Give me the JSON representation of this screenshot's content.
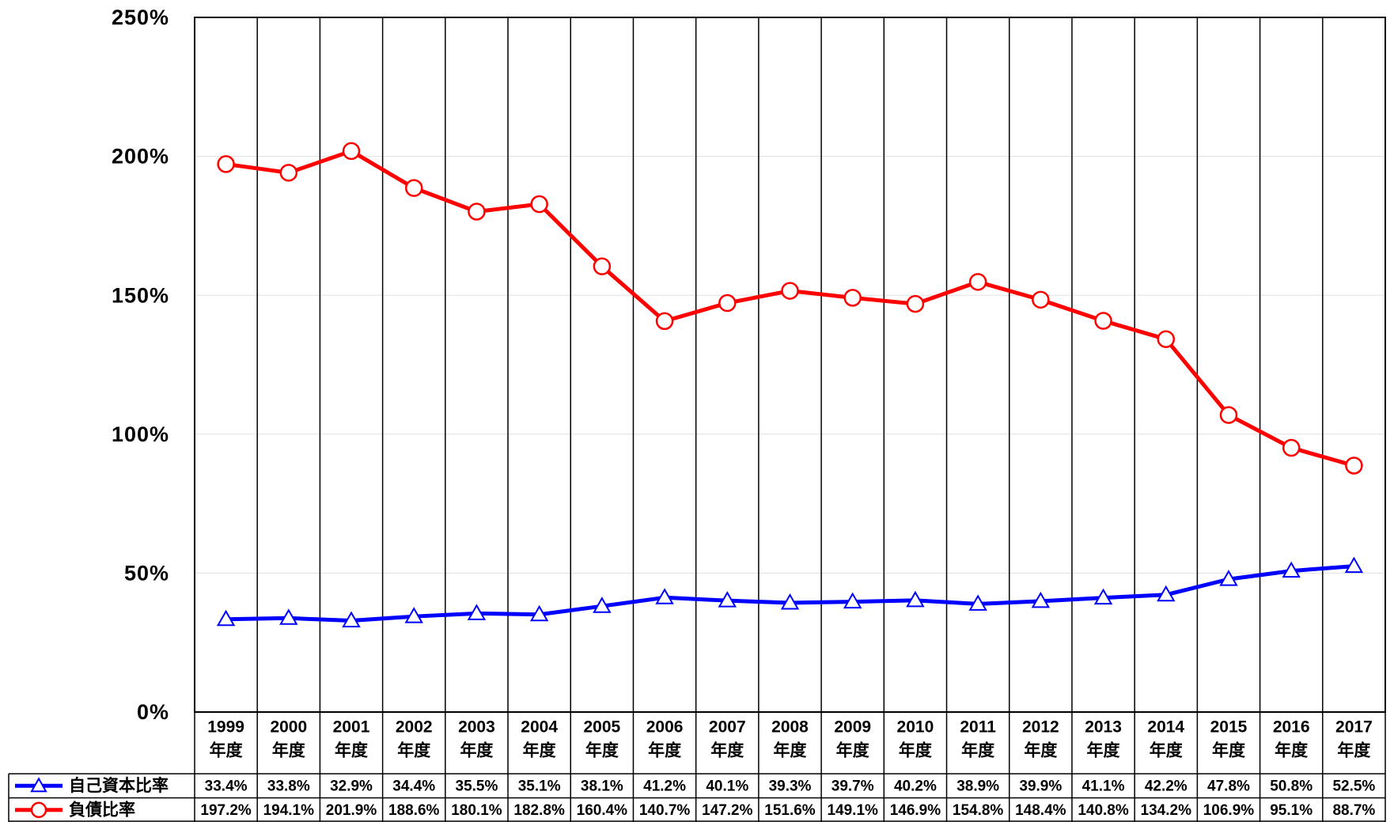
{
  "chart_data": {
    "type": "line",
    "categories": [
      "1999",
      "2000",
      "2001",
      "2002",
      "2003",
      "2004",
      "2005",
      "2006",
      "2007",
      "2008",
      "2009",
      "2010",
      "2011",
      "2012",
      "2013",
      "2014",
      "2015",
      "2016",
      "2017"
    ],
    "category_suffix": "年度",
    "series": [
      {
        "name": "自己資本比率",
        "color": "#0000ff",
        "marker": "triangle",
        "values": [
          33.4,
          33.8,
          32.9,
          34.4,
          35.5,
          35.1,
          38.1,
          41.2,
          40.1,
          39.3,
          39.7,
          40.2,
          38.9,
          39.9,
          41.1,
          42.2,
          47.8,
          50.8,
          52.5
        ],
        "value_labels": [
          "33.4%",
          "33.8%",
          "32.9%",
          "34.4%",
          "35.5%",
          "35.1%",
          "38.1%",
          "41.2%",
          "40.1%",
          "39.3%",
          "39.7%",
          "40.2%",
          "38.9%",
          "39.9%",
          "41.1%",
          "42.2%",
          "47.8%",
          "50.8%",
          "52.5%"
        ]
      },
      {
        "name": "負債比率",
        "color": "#ff0000",
        "marker": "circle",
        "values": [
          197.2,
          194.1,
          201.9,
          188.6,
          180.1,
          182.8,
          160.4,
          140.7,
          147.2,
          151.6,
          149.1,
          146.9,
          154.8,
          148.4,
          140.8,
          134.2,
          106.9,
          95.1,
          88.7
        ],
        "value_labels": [
          "197.2%",
          "194.1%",
          "201.9%",
          "188.6%",
          "180.1%",
          "182.8%",
          "160.4%",
          "140.7%",
          "147.2%",
          "151.6%",
          "149.1%",
          "146.9%",
          "154.8%",
          "148.4%",
          "140.8%",
          "134.2%",
          "106.9%",
          "95.1%",
          "88.7%"
        ]
      }
    ],
    "ylim": [
      0,
      250
    ],
    "yticks": [
      {
        "value": 0,
        "label": "0%"
      },
      {
        "value": 50,
        "label": "50%"
      },
      {
        "value": 100,
        "label": "100%"
      },
      {
        "value": 150,
        "label": "150%"
      },
      {
        "value": 200,
        "label": "200%"
      },
      {
        "value": 250,
        "label": "250%"
      }
    ],
    "grid": true
  }
}
